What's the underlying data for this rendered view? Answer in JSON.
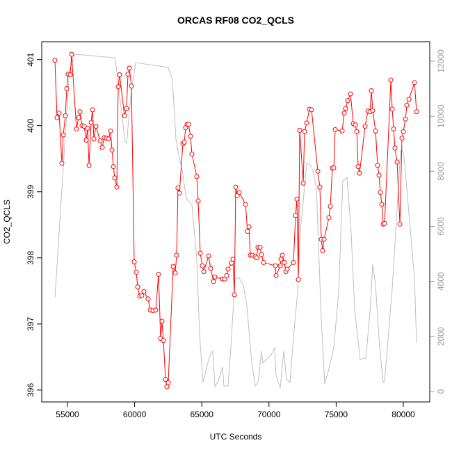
{
  "chart_data": {
    "type": "line",
    "title": "ORCAS RF08 CO2_QCLS",
    "xlabel": "UTC Seconds",
    "ylabel": "CO2_QCLS",
    "xlim": [
      53085,
      81967
    ],
    "xticks": [
      55000,
      60000,
      65000,
      70000,
      75000,
      80000
    ],
    "ylim": [
      395.82,
      401.27
    ],
    "yticks": [
      396,
      397,
      398,
      399,
      400,
      401
    ],
    "y2lim": [
      -379,
      12707
    ],
    "y2ticks": [
      0,
      2000,
      4000,
      6000,
      8000,
      10000,
      12000
    ],
    "series": [
      {
        "color": "#bebebe",
        "axis": "y2",
        "x": [
          54068,
          55155,
          55569,
          58520,
          58623,
          59296,
          59400,
          59710,
          60072,
          62505,
          62816,
          63075,
          63230,
          63540,
          63851,
          64265,
          64627,
          64834,
          65093,
          65404,
          65663,
          65818,
          65973,
          66232,
          66542,
          66646,
          66957,
          67164,
          67474,
          67785,
          68095,
          68354,
          68716,
          68975,
          69182,
          69441,
          69545,
          70166,
          70424,
          70528,
          70839,
          71098,
          71304,
          71563,
          71822,
          72133,
          72340,
          72547,
          72805,
          73012,
          73271,
          73530,
          73892,
          74151,
          74462,
          74824,
          75186,
          75497,
          75808,
          76118,
          76377,
          76791,
          77205,
          77516,
          77723,
          77930,
          78240,
          78499,
          78603,
          79172,
          79794,
          79897,
          80053,
          80829,
          80985
        ],
        "values": [
          3410,
          11695,
          12251,
          12125,
          11822,
          9043,
          9018,
          10685,
          11948,
          11771,
          11317,
          9170,
          8715,
          8033,
          7022,
          6770,
          4799,
          2097,
          328,
          960,
          1389,
          1465,
          177,
          379,
          884,
          202,
          202,
          1591,
          4117,
          4117,
          3865,
          3107,
          1086,
          202,
          328,
          1465,
          1036,
          1339,
          1591,
          581,
          126,
          1465,
          455,
          328,
          1970,
          3612,
          5886,
          6896,
          8285,
          8260,
          8033,
          7401,
          2602,
          278,
          834,
          1591,
          3612,
          7653,
          7780,
          5760,
          2981,
          1162,
          1212,
          2855,
          4623,
          3865,
          1591,
          328,
          379,
          3738,
          8740,
          8790,
          8538,
          4117,
          1768
        ]
      },
      {
        "color": "#ff0000",
        "marker": "circle",
        "x": [
          54068,
          54223,
          54379,
          54585,
          54689,
          54844,
          54948,
          55052,
          55207,
          55311,
          55673,
          55829,
          55932,
          56087,
          56242,
          56398,
          56501,
          56605,
          56760,
          56864,
          56967,
          57122,
          57433,
          57588,
          57743,
          57899,
          58054,
          58209,
          58313,
          58416,
          58520,
          58675,
          58778,
          58882,
          59244,
          59400,
          59503,
          59607,
          59762,
          59969,
          60124,
          60228,
          60383,
          60538,
          60694,
          61004,
          61159,
          61366,
          61573,
          61780,
          61936,
          62039,
          62143,
          62298,
          62402,
          62505,
          62868,
          63023,
          63127,
          63230,
          63334,
          63593,
          63696,
          63800,
          63903,
          64007,
          64162,
          64266,
          64628,
          64731,
          64887,
          65042,
          65146,
          65508,
          65663,
          65870,
          65974,
          66543,
          66699,
          66854,
          66957,
          67216,
          67320,
          67423,
          67527,
          67630,
          67786,
          68252,
          68407,
          68511,
          68614,
          68770,
          68977,
          69081,
          69184,
          69339,
          69443,
          69598,
          70477,
          70529,
          70840,
          70891,
          70995,
          71150,
          71254,
          71357,
          71823,
          71978,
          72082,
          72185,
          72289,
          72548,
          72651,
          72807,
          73014,
          73169,
          73635,
          73790,
          73894,
          73997,
          74101,
          74463,
          74567,
          74722,
          74826,
          74929,
          75447,
          75602,
          75706,
          75861,
          76068,
          76275,
          76431,
          76534,
          76638,
          76741,
          77155,
          77362,
          77518,
          77621,
          77725,
          77932,
          78087,
          78191,
          78294,
          78398,
          78501,
          78605,
          79071,
          79174,
          79278,
          79381,
          79537,
          79744,
          79899,
          80003,
          80158,
          80262,
          80417,
          80831,
          80987
        ],
        "values": [
          400.99,
          400.12,
          400.19,
          399.43,
          399.86,
          400.15,
          400.56,
          400.78,
          400.77,
          401.08,
          399.95,
          400.12,
          400.21,
          400.0,
          399.99,
          399.78,
          399.96,
          399.4,
          400.05,
          400.24,
          399.8,
          399.99,
          399.77,
          399.67,
          399.82,
          399.81,
          399.8,
          399.92,
          399.63,
          399.38,
          399.21,
          399.07,
          400.59,
          400.77,
          400.15,
          400.26,
          400.78,
          400.87,
          400.6,
          397.94,
          397.78,
          397.56,
          397.42,
          397.43,
          397.49,
          397.38,
          397.21,
          397.2,
          397.21,
          397.75,
          396.78,
          397.04,
          396.75,
          396.16,
          396.05,
          396.11,
          397.87,
          397.77,
          398.04,
          399.06,
          398.98,
          399.73,
          399.75,
          399.97,
          400.02,
          400.02,
          399.84,
          399.57,
          399.23,
          398.86,
          398.07,
          397.88,
          397.79,
          398.03,
          397.84,
          397.64,
          397.71,
          397.68,
          397.68,
          397.73,
          397.83,
          397.92,
          397.98,
          397.44,
          399.07,
          398.94,
          398.99,
          398.81,
          398.4,
          398.47,
          398.04,
          398.04,
          398.02,
          398.0,
          398.16,
          398.16,
          398.05,
          397.93,
          397.88,
          397.73,
          397.88,
          397.98,
          398.04,
          397.93,
          397.79,
          397.83,
          397.93,
          398.64,
          398.89,
          397.67,
          399.93,
          399.13,
          399.91,
          400.04,
          400.25,
          400.24,
          399.31,
          399.07,
          398.28,
          398.11,
          398.28,
          398.61,
          398.78,
          399.36,
          399.36,
          399.94,
          399.92,
          400.19,
          400.26,
          400.38,
          400.48,
          400.03,
          400.01,
          399.91,
          399.38,
          399.28,
          399.99,
          400.22,
          400.21,
          400.53,
          400.23,
          399.92,
          399.4,
          399.25,
          398.99,
          398.81,
          398.51,
          398.52,
          400.69,
          400.25,
          399.95,
          399.66,
          399.45,
          398.51,
          399.81,
          399.91,
          400.1,
          400.31,
          400.4,
          400.65,
          400.21
        ]
      }
    ]
  }
}
